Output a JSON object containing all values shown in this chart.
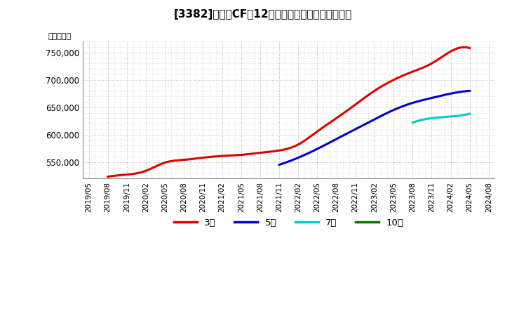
{
  "title": "[3382]　営業CFの12か月移動合計の平均値の推移",
  "ylabel": "（百万円）",
  "background_color": "#ffffff",
  "plot_bg_color": "#ffffff",
  "grid_color": "#aaaaaa",
  "ylim": [
    520000,
    770000
  ],
  "yticks": [
    550000,
    600000,
    650000,
    700000,
    750000
  ],
  "series": {
    "3year": {
      "color": "#dd0000",
      "label": "3年",
      "x": [
        "2019/08",
        "2019/11",
        "2020/02",
        "2020/05",
        "2020/08",
        "2020/11",
        "2021/02",
        "2021/05",
        "2021/08",
        "2021/11",
        "2022/02",
        "2022/05",
        "2022/08",
        "2022/11",
        "2023/02",
        "2023/05",
        "2023/08",
        "2023/11",
        "2024/02",
        "2024/05"
      ],
      "y": [
        523000,
        527000,
        534000,
        549000,
        554000,
        558000,
        561000,
        563000,
        567000,
        571000,
        582000,
        606000,
        630000,
        655000,
        680000,
        700000,
        715000,
        730000,
        752000,
        758000
      ]
    },
    "5year": {
      "color": "#0000cc",
      "label": "5年",
      "x": [
        "2021/11",
        "2022/02",
        "2022/05",
        "2022/08",
        "2022/11",
        "2023/02",
        "2023/05",
        "2023/08",
        "2023/11",
        "2024/02",
        "2024/05"
      ],
      "y": [
        545000,
        558000,
        574000,
        592000,
        610000,
        628000,
        645000,
        658000,
        667000,
        675000,
        680000
      ]
    },
    "7year": {
      "color": "#00cccc",
      "label": "7年",
      "x": [
        "2023/08",
        "2023/11",
        "2024/02",
        "2024/05"
      ],
      "y": [
        622000,
        630000,
        633000,
        638000
      ]
    },
    "10year": {
      "color": "#007700",
      "label": "10年",
      "x": [],
      "y": []
    }
  },
  "x_labels": [
    "2019/05",
    "2019/08",
    "2019/11",
    "2020/02",
    "2020/05",
    "2020/08",
    "2020/11",
    "2021/02",
    "2021/05",
    "2021/08",
    "2021/11",
    "2022/02",
    "2022/05",
    "2022/08",
    "2022/11",
    "2023/02",
    "2023/05",
    "2023/08",
    "2023/11",
    "2024/02",
    "2024/05",
    "2024/08"
  ],
  "legend_labels": [
    "3年",
    "5年",
    "7年",
    "10年"
  ],
  "legend_colors": [
    "#dd0000",
    "#0000cc",
    "#00cccc",
    "#007700"
  ]
}
